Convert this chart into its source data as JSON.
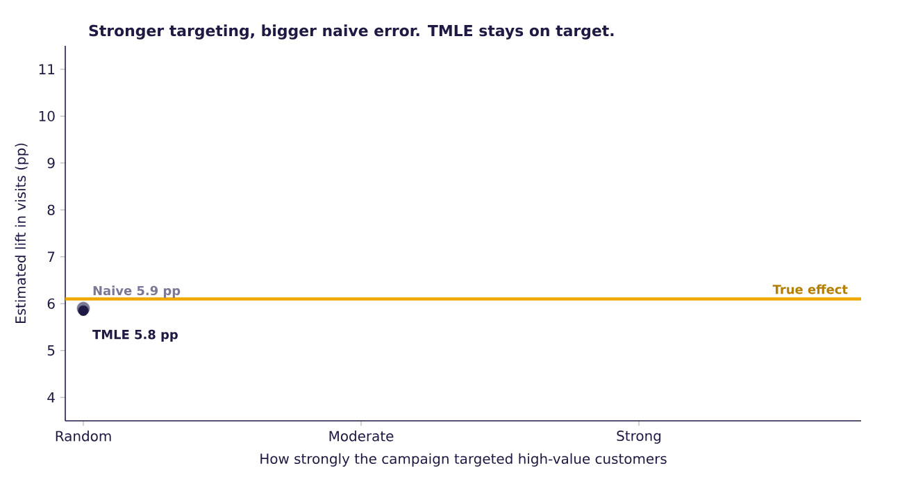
{
  "chart_data": {
    "type": "scatter",
    "title": "Stronger targeting, bigger naive error. TMLE stays on target.",
    "xlabel": "How strongly the campaign targeted high-value customers",
    "ylabel": "Estimated lift in visits (pp)",
    "categories": [
      "Random",
      "Moderate",
      "Strong"
    ],
    "series": [
      {
        "color": "#7a7894",
        "values": [
          5.9,
          null,
          null
        ]
      },
      {
        "color": "#1f1a44",
        "values": [
          5.85,
          null,
          null
        ]
      }
    ],
    "ylim": [
      3.5,
      11.5
    ],
    "yticks": [
      4,
      5,
      6,
      7,
      8,
      9,
      10,
      11
    ],
    "grid": false,
    "marker": "circle",
    "ref_lines": [
      {
        "axis": "y",
        "value": 6.1,
        "label": "True effect",
        "color": "#f0a800"
      }
    ],
    "annotations": [
      {
        "text": "Naive  5.9 pp",
        "x": "Random",
        "y": 5.9
      },
      {
        "text": "TMLE  5.8 pp",
        "x": "Random",
        "y": 5.85
      }
    ]
  }
}
